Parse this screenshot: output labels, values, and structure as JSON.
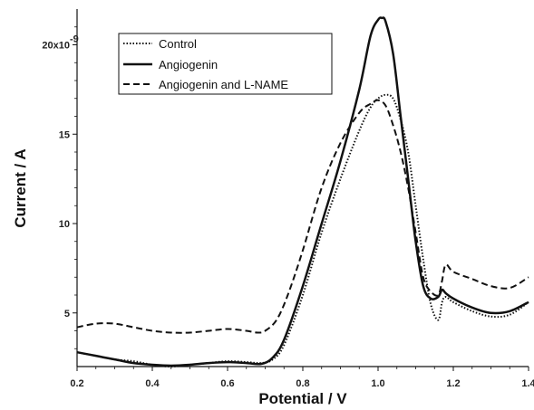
{
  "chart_data": {
    "type": "line",
    "xlabel": "Potential / V",
    "ylabel": "Current / A",
    "xlim": [
      0.2,
      1.4
    ],
    "ylim": [
      2.0,
      22.0
    ],
    "y_scale_label": "x10-9",
    "x_ticks": [
      {
        "value": 0.2,
        "label": "0.2"
      },
      {
        "value": 0.4,
        "label": "0.4"
      },
      {
        "value": 0.6,
        "label": "0.6"
      },
      {
        "value": 0.8,
        "label": "0.8"
      },
      {
        "value": 1.0,
        "label": "1.0"
      },
      {
        "value": 1.2,
        "label": "1.2"
      },
      {
        "value": 1.4,
        "label": "1.4"
      }
    ],
    "y_ticks": [
      {
        "value": 5,
        "label": "5"
      },
      {
        "value": 10,
        "label": "10"
      },
      {
        "value": 15,
        "label": "15"
      },
      {
        "value": 20,
        "label": "20x10"
      }
    ],
    "grid": false,
    "legend": "top-left",
    "series": [
      {
        "name": "Control",
        "style": "dotted",
        "color": "#111111",
        "x": [
          0.2,
          0.25,
          0.3,
          0.35,
          0.4,
          0.45,
          0.5,
          0.55,
          0.6,
          0.65,
          0.69,
          0.72,
          0.75,
          0.8,
          0.85,
          0.9,
          0.95,
          0.98,
          1.0,
          1.02,
          1.04,
          1.06,
          1.08,
          1.1,
          1.12,
          1.14,
          1.16,
          1.17,
          1.18,
          1.2,
          1.25,
          1.3,
          1.35,
          1.4
        ],
        "values": [
          2.8,
          2.6,
          2.4,
          2.3,
          2.1,
          2.0,
          2.1,
          2.2,
          2.3,
          2.25,
          2.2,
          2.4,
          3.2,
          6.0,
          9.5,
          12.5,
          15.2,
          16.5,
          17.0,
          17.2,
          17.0,
          15.8,
          14.0,
          11.0,
          8.0,
          5.5,
          4.6,
          5.6,
          5.9,
          5.6,
          5.1,
          4.8,
          4.9,
          5.6
        ]
      },
      {
        "name": "Angiogenin",
        "style": "solid",
        "color": "#111111",
        "x": [
          0.2,
          0.25,
          0.3,
          0.35,
          0.4,
          0.45,
          0.5,
          0.55,
          0.6,
          0.65,
          0.69,
          0.72,
          0.75,
          0.8,
          0.85,
          0.9,
          0.95,
          0.98,
          1.0,
          1.01,
          1.02,
          1.04,
          1.06,
          1.08,
          1.1,
          1.12,
          1.14,
          1.16,
          1.17,
          1.18,
          1.2,
          1.25,
          1.3,
          1.35,
          1.4
        ],
        "values": [
          2.8,
          2.6,
          2.4,
          2.2,
          2.1,
          2.05,
          2.1,
          2.2,
          2.25,
          2.2,
          2.15,
          2.5,
          3.5,
          6.5,
          10.0,
          13.5,
          17.5,
          20.5,
          21.4,
          21.5,
          21.3,
          19.5,
          16.0,
          12.5,
          9.0,
          6.5,
          5.8,
          5.9,
          6.3,
          6.1,
          5.8,
          5.3,
          5.0,
          5.1,
          5.6
        ]
      },
      {
        "name": "Angiogenin and L-NAME",
        "style": "dashed",
        "color": "#111111",
        "x": [
          0.2,
          0.25,
          0.3,
          0.35,
          0.4,
          0.45,
          0.5,
          0.55,
          0.6,
          0.65,
          0.68,
          0.7,
          0.73,
          0.76,
          0.8,
          0.85,
          0.9,
          0.95,
          0.98,
          1.0,
          1.02,
          1.04,
          1.06,
          1.08,
          1.1,
          1.12,
          1.14,
          1.16,
          1.17,
          1.18,
          1.2,
          1.25,
          1.3,
          1.35,
          1.4
        ],
        "values": [
          4.2,
          4.4,
          4.4,
          4.2,
          4.0,
          3.9,
          3.9,
          4.0,
          4.1,
          4.0,
          3.9,
          4.0,
          4.6,
          6.0,
          8.5,
          12.0,
          14.5,
          16.2,
          16.7,
          16.9,
          16.6,
          15.5,
          14.0,
          12.0,
          9.5,
          7.0,
          6.2,
          6.0,
          6.8,
          7.7,
          7.3,
          6.9,
          6.5,
          6.4,
          7.0
        ]
      }
    ]
  }
}
